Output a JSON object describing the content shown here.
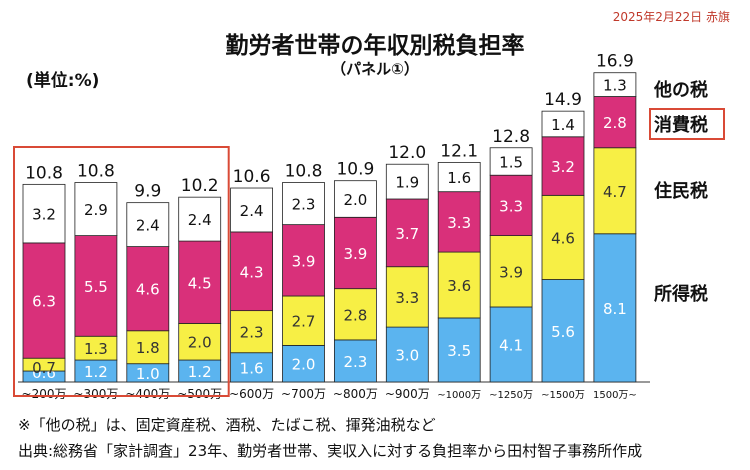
{
  "header": {
    "title": "勤労者世帯の年収別税負担率",
    "subtitle": "（パネル①）",
    "date": "2025年2月22日 赤旗"
  },
  "chart_data": {
    "type": "bar",
    "stacked": true,
    "unit_label": "(単位:%)",
    "categories": [
      "~200万",
      "~300万",
      "~400万",
      "~500万",
      "~600万",
      "~700万",
      "~800万",
      "~900万",
      "~1000万",
      "~1250万",
      "~1500万",
      "1500万~"
    ],
    "totals": [
      "10.8",
      "10.8",
      "9.9",
      "10.2",
      "10.6",
      "10.8",
      "10.9",
      "12.0",
      "12.1",
      "12.8",
      "14.9",
      "16.9"
    ],
    "series": [
      {
        "name": "所得税",
        "color": "#5bb4ef",
        "values": [
          0.6,
          1.2,
          1.0,
          1.2,
          1.6,
          2.0,
          2.3,
          3.0,
          3.5,
          4.1,
          5.6,
          8.1
        ]
      },
      {
        "name": "住民税",
        "color": "#f7ef45",
        "values": [
          0.7,
          1.3,
          1.8,
          2.0,
          2.3,
          2.7,
          2.8,
          3.3,
          3.6,
          3.9,
          4.6,
          4.7
        ]
      },
      {
        "name": "消費税",
        "color": "#d9307a",
        "values": [
          6.3,
          5.5,
          4.6,
          4.5,
          4.3,
          3.9,
          3.9,
          3.7,
          3.3,
          3.3,
          3.2,
          2.8
        ]
      },
      {
        "name": "他の税",
        "color": "#ffffff",
        "values": [
          3.2,
          2.9,
          2.4,
          2.4,
          2.4,
          2.3,
          2.0,
          1.9,
          1.6,
          1.5,
          1.4,
          1.3
        ]
      }
    ],
    "highlight_categories": [
      "~200万",
      "~300万",
      "~400万",
      "~500万"
    ],
    "highlight_legend": "消費税",
    "ylim": [
      0,
      17.8
    ]
  },
  "footnotes": [
    "※「他の税」は、固定資産税、酒税、たばこ税、揮発油税など",
    "出典:総務省「家計調査」23年、勤労者世帯、実収入に対する負担率から田村智子事務所作成"
  ]
}
